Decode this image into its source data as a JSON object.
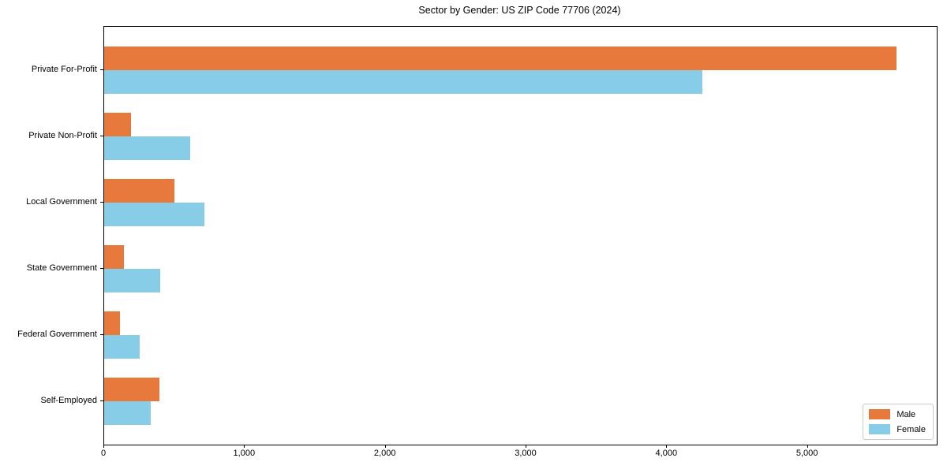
{
  "chart_data": {
    "type": "bar",
    "orientation": "horizontal",
    "title": "Sector by Gender: US ZIP Code 77706 (2024)",
    "categories": [
      "Private For-Profit",
      "Private Non-Profit",
      "Local Government",
      "State Government",
      "Federal Government",
      "Self-Employed"
    ],
    "series": [
      {
        "name": "Male",
        "color": "#e8793c",
        "values": [
          5630,
          190,
          500,
          140,
          110,
          390
        ]
      },
      {
        "name": "Female",
        "color": "#87cde8",
        "values": [
          4250,
          610,
          710,
          400,
          250,
          330
        ]
      }
    ],
    "xlabel": "",
    "ylabel": "",
    "xlim": [
      0,
      5916
    ],
    "xticks": [
      {
        "value": 0,
        "label": "0"
      },
      {
        "value": 1000,
        "label": "1,000"
      },
      {
        "value": 2000,
        "label": "2,000"
      },
      {
        "value": 3000,
        "label": "3,000"
      },
      {
        "value": 4000,
        "label": "4,000"
      },
      {
        "value": 5000,
        "label": "5,000"
      }
    ],
    "grid": false,
    "legend_position": "lower right",
    "background_color": "#ffffff",
    "axis_color": "#000000"
  }
}
